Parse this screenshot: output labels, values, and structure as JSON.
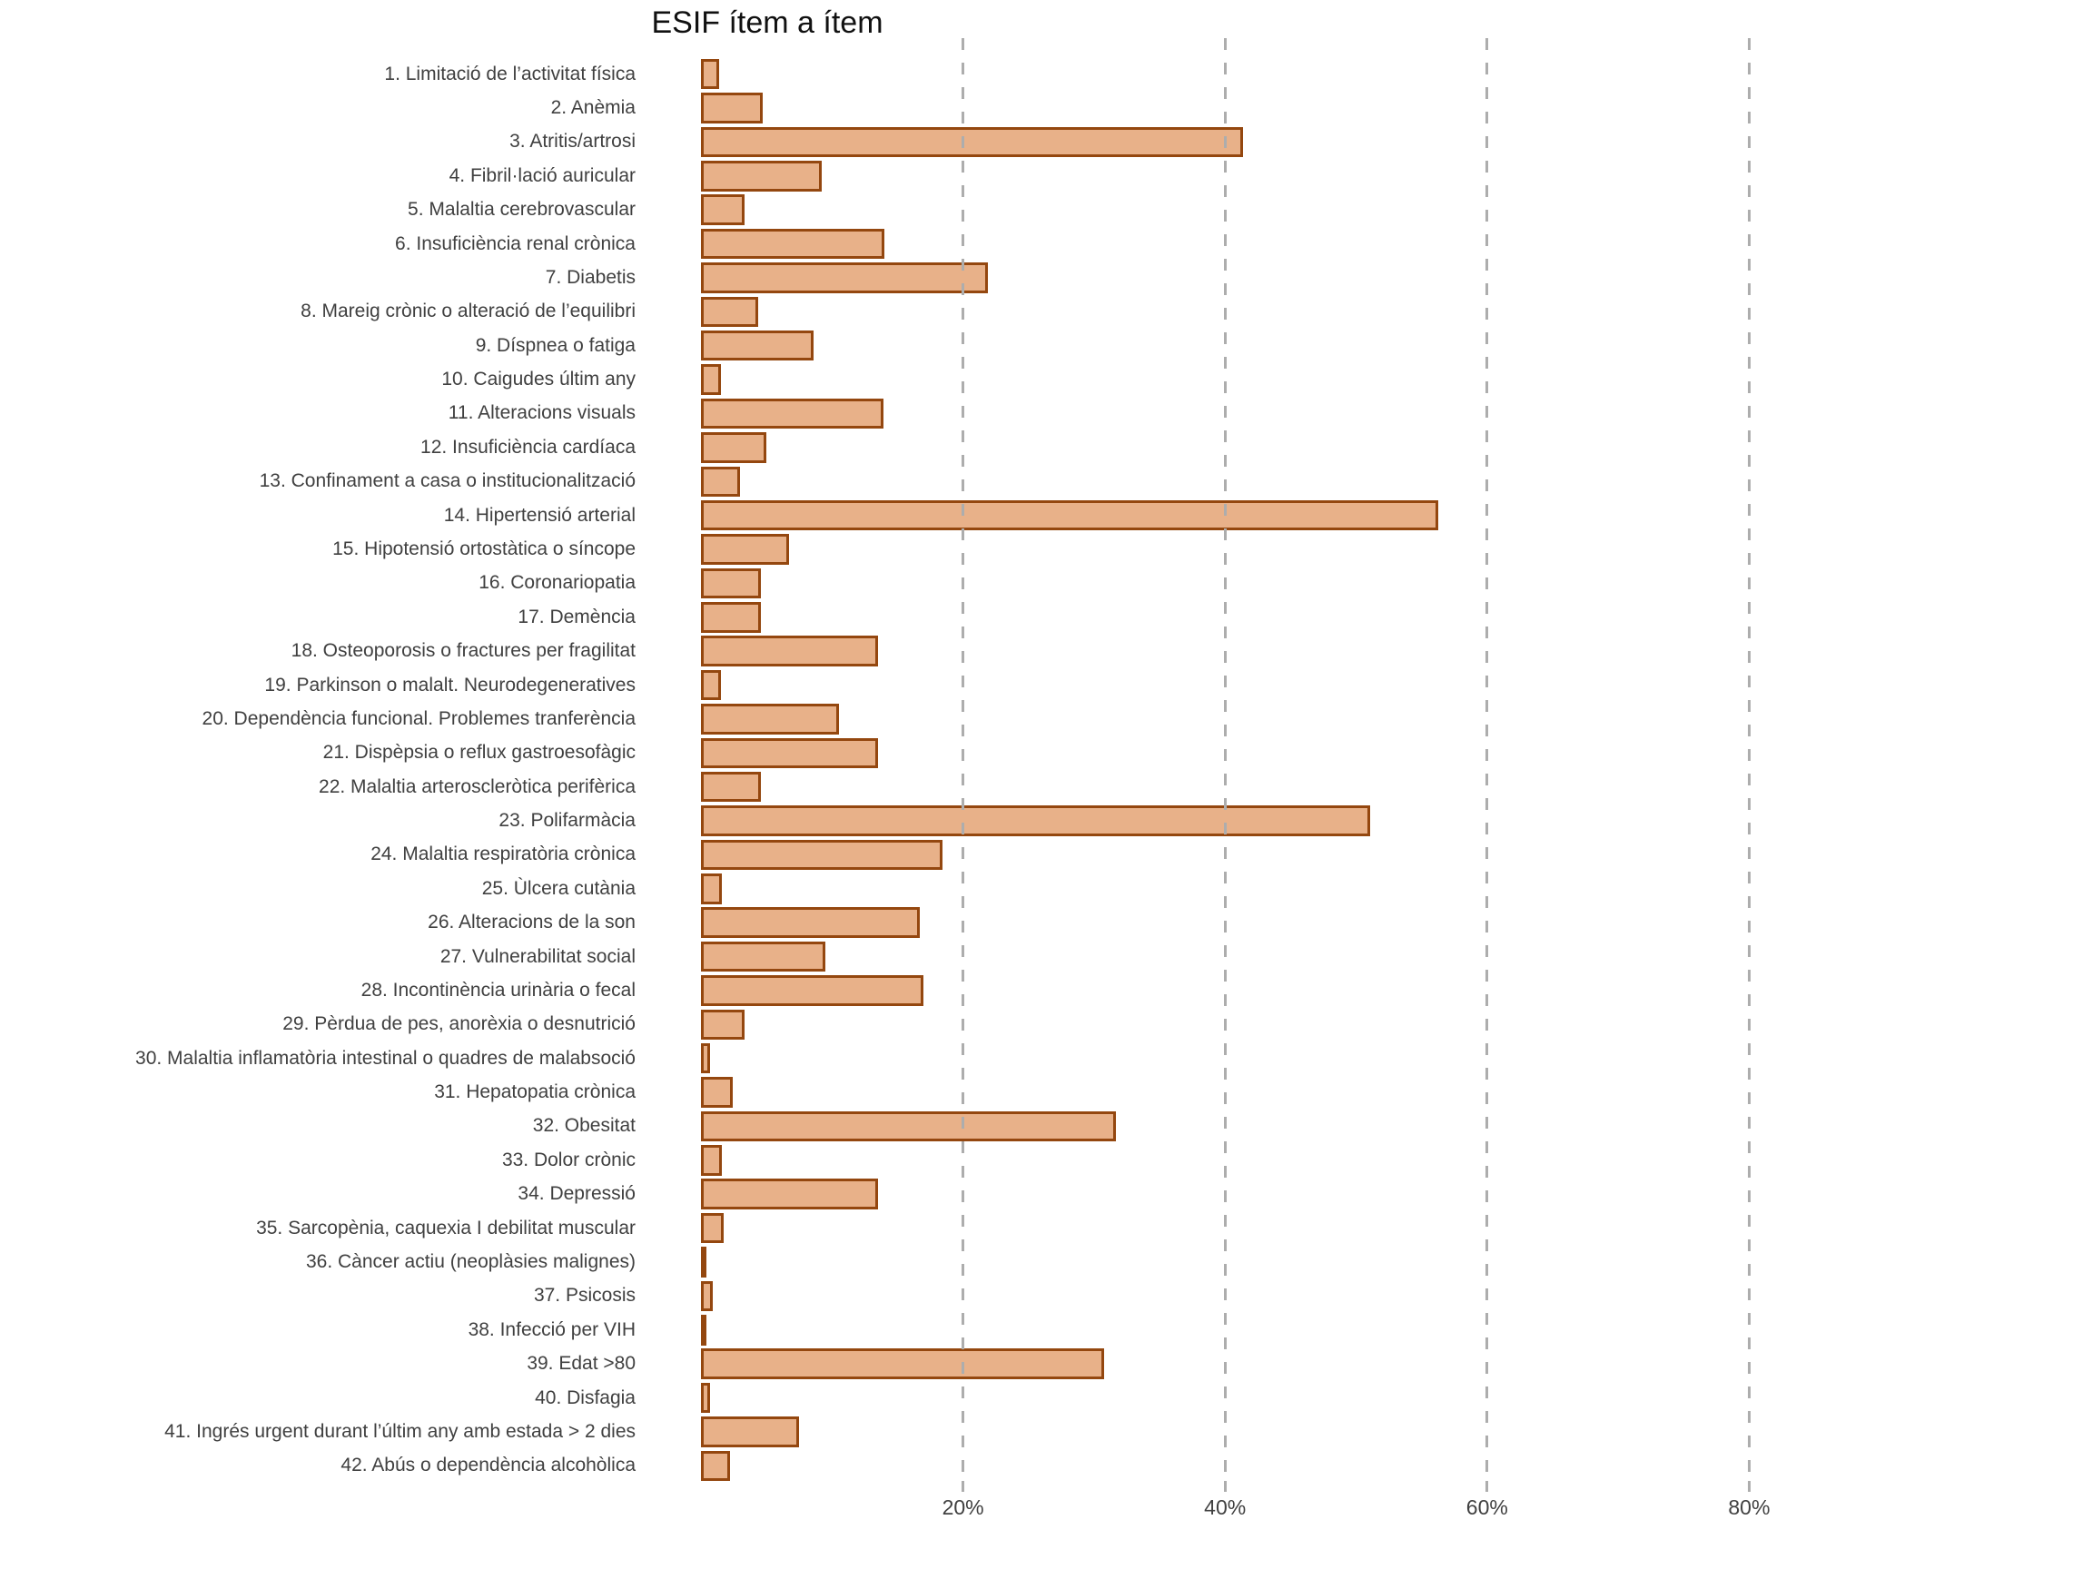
{
  "chart_data": {
    "type": "bar",
    "orientation": "horizontal",
    "title": "ESIF ítem a ítem",
    "xlabel": "",
    "ylabel": "",
    "xlim": [
      0,
      100
    ],
    "xtick_values": [
      20,
      40,
      60,
      80
    ],
    "xtick_labels": [
      "20%",
      "40%",
      "60%",
      "80%"
    ],
    "grid": "vertical-dashed",
    "legend": "none",
    "value_unit": "%",
    "categories": [
      "1. Limitació de l’activitat física",
      "2. Anèmia",
      "3. Atritis/artrosi",
      "4. Fibril·lació auricular",
      "5. Malaltia cerebrovascular",
      "6. Insuficiència renal crònica",
      "7. Diabetis",
      "8. Mareig crònic o alteració de l’equilibri",
      "9. Díspnea o fatiga",
      "10. Caigudes últim any",
      "11. Alteracions visuals",
      "12. Insuficiència cardíaca",
      "13. Confinament a casa o institucionalització",
      "14. Hipertensió arterial",
      "15. Hipotensió ortostàtica o síncope",
      "16. Coronariopatia",
      "17. Demència",
      "18. Osteoporosis o fractures per fragilitat",
      "19. Parkinson o malalt. Neurodegeneratives",
      "20. Dependència funcional. Problemes tranferència",
      "21. Dispèpsia o reflux gastroesofàgic",
      "22. Malaltia arteroscleròtica perifèrica",
      "23. Polifarmàcia",
      "24. Malaltia respiratòria crònica",
      "25. Ùlcera cutània",
      "26. Alteracions de la son",
      "27. Vulnerabilitat social",
      "28. Incontinència urinària o fecal",
      "29. Pèrdua de pes, anorèxia o desnutrició",
      "30. Malaltia inflamatòria intestinal o quadres de malabsoció",
      "31. Hepatopatia crònica",
      "32. Obesitat",
      "33. Dolor crònic",
      "34. Depressió",
      "35. Sarcopènia, caquexia I debilitat muscular",
      "36. Càncer actiu (neoplàsies malignes)",
      "37. Psicosis",
      "38. Infecció per VIH",
      "39. Edat >80",
      "40. Disfagia",
      "41. Ingrés urgent durant l’últim any amb estada > 2 dies",
      "42. Abús o dependència alcohòlica"
    ],
    "values": [
      1.4,
      4.7,
      41.4,
      9.2,
      3.3,
      14.0,
      21.9,
      4.4,
      8.6,
      1.5,
      13.9,
      5.0,
      3.0,
      56.3,
      6.7,
      4.6,
      4.6,
      13.5,
      1.5,
      10.5,
      13.5,
      4.6,
      51.1,
      18.4,
      1.6,
      16.7,
      9.5,
      17.0,
      3.3,
      0.7,
      2.4,
      31.7,
      1.6,
      13.5,
      1.7,
      0.1,
      0.9,
      0.1,
      30.8,
      0.7,
      7.5,
      2.2
    ],
    "colors": {
      "bar_fill": "#E8B189",
      "bar_border": "#94470F",
      "gridline": "#ADADAD",
      "text": "#404040",
      "title": "#111111",
      "background": "#FFFFFF"
    }
  }
}
